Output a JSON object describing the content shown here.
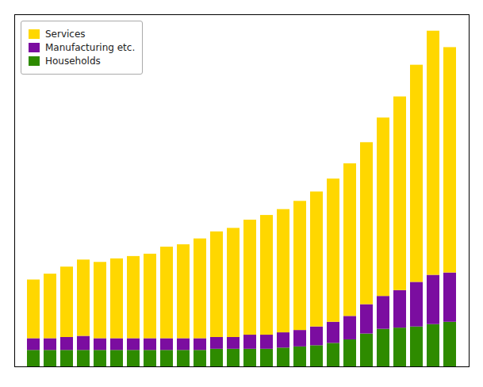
{
  "chart_data": {
    "type": "bar",
    "stacked": true,
    "categories": [
      null,
      null,
      null,
      null,
      null,
      null,
      null,
      null,
      null,
      null,
      null,
      null,
      null,
      null,
      null,
      null,
      null,
      null,
      null,
      null,
      null,
      null,
      null,
      null,
      null,
      null
    ],
    "series": [
      {
        "name": "Services",
        "color": "#FFD700",
        "values": [
          0.5,
          0.55,
          0.6,
          0.65,
          0.65,
          0.68,
          0.7,
          0.72,
          0.78,
          0.8,
          0.85,
          0.9,
          0.93,
          0.98,
          1.02,
          1.05,
          1.1,
          1.15,
          1.22,
          1.3,
          1.38,
          1.52,
          1.65,
          1.85,
          2.08,
          1.92
        ]
      },
      {
        "name": "Manufacturing etc.",
        "color": "#7B0DA0",
        "values": [
          0.1,
          0.1,
          0.11,
          0.12,
          0.1,
          0.1,
          0.1,
          0.1,
          0.1,
          0.1,
          0.1,
          0.1,
          0.1,
          0.12,
          0.12,
          0.13,
          0.14,
          0.16,
          0.18,
          0.2,
          0.25,
          0.28,
          0.32,
          0.38,
          0.42,
          0.42
        ]
      },
      {
        "name": "Households",
        "color": "#2E8B00",
        "values": [
          0.14,
          0.14,
          0.14,
          0.14,
          0.14,
          0.14,
          0.14,
          0.14,
          0.14,
          0.14,
          0.14,
          0.15,
          0.15,
          0.15,
          0.15,
          0.16,
          0.17,
          0.18,
          0.2,
          0.23,
          0.28,
          0.32,
          0.33,
          0.34,
          0.36,
          0.38
        ]
      }
    ],
    "ylim": [
      0,
      3.0
    ],
    "grid": false,
    "legend": "upper left",
    "tick_labels": false
  }
}
